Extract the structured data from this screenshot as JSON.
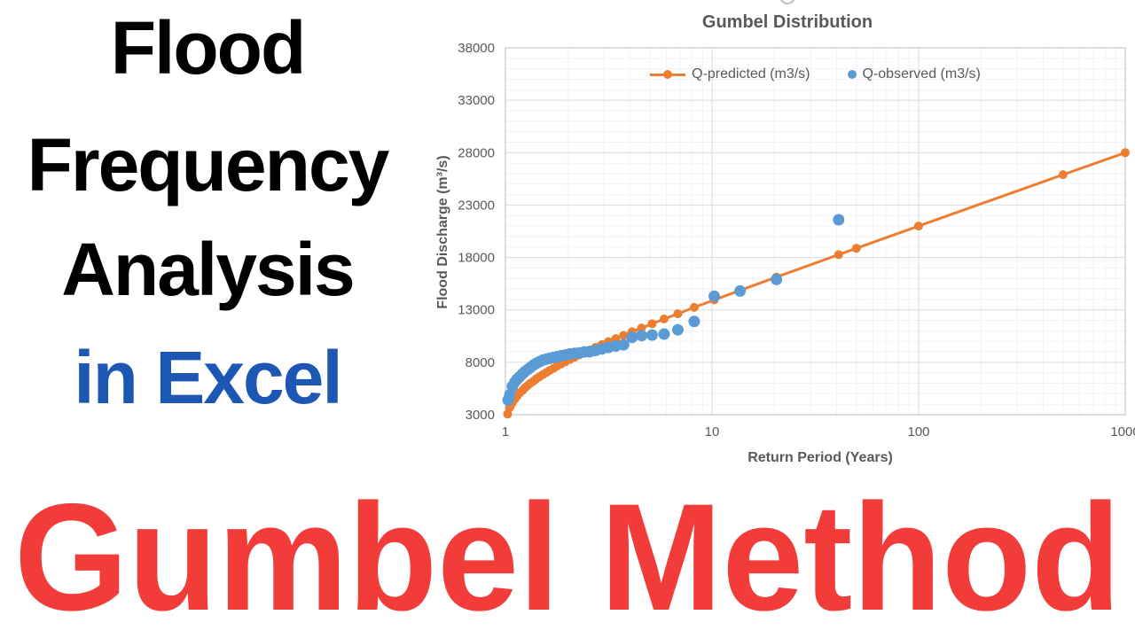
{
  "headline": {
    "lines": [
      {
        "text": "Flood",
        "color": "#000000"
      },
      {
        "text": "Frequency",
        "color": "#000000"
      },
      {
        "text": "Analysis",
        "color": "#000000"
      },
      {
        "text": "in Excel",
        "color": "#1c57b4"
      }
    ],
    "bottom": {
      "text": "Gumbel Method",
      "color": "#f23c3a"
    }
  },
  "chart_data": {
    "type": "scatter",
    "title": "Gumbel Distribution",
    "xlabel": "Return Period (Years)",
    "ylabel": "Flood Discharge (m³/s)",
    "x_axis": {
      "scale": "log",
      "min": 1,
      "max": 1000,
      "ticks": [
        1,
        10,
        100,
        1000
      ]
    },
    "y_axis": {
      "min": 3000,
      "max": 38000,
      "minor_step": 1000,
      "ticks": [
        3000,
        8000,
        13000,
        18000,
        23000,
        28000,
        33000,
        38000
      ]
    },
    "grid": {
      "major": true,
      "minor": true,
      "major_color": "#d6dbe2",
      "minor_color": "#eff2f6",
      "border_color": "#cdd4dd"
    },
    "legend_position": "top-center",
    "text_color": "#595959",
    "series": [
      {
        "name": "Q-predicted (m3/s)",
        "style": "line-marker",
        "color": "#ED7D31",
        "points": [
          [
            1.025,
            3060
          ],
          [
            1.05,
            3690
          ],
          [
            1.08,
            4130
          ],
          [
            1.11,
            4480
          ],
          [
            1.14,
            4790
          ],
          [
            1.17,
            5060
          ],
          [
            1.21,
            5320
          ],
          [
            1.24,
            5550
          ],
          [
            1.28,
            5780
          ],
          [
            1.32,
            6000
          ],
          [
            1.37,
            6210
          ],
          [
            1.41,
            6420
          ],
          [
            1.46,
            6620
          ],
          [
            1.52,
            6830
          ],
          [
            1.58,
            7030
          ],
          [
            1.64,
            7230
          ],
          [
            1.71,
            7430
          ],
          [
            1.78,
            7640
          ],
          [
            1.86,
            7840
          ],
          [
            1.95,
            8050
          ],
          [
            2.05,
            8260
          ],
          [
            2.16,
            8480
          ],
          [
            2.28,
            8710
          ],
          [
            2.41,
            8940
          ],
          [
            2.56,
            9180
          ],
          [
            2.73,
            9430
          ],
          [
            2.93,
            9690
          ],
          [
            3.15,
            9970
          ],
          [
            3.42,
            10260
          ],
          [
            3.73,
            10570
          ],
          [
            4.1,
            10910
          ],
          [
            4.56,
            11270
          ],
          [
            5.13,
            11680
          ],
          [
            5.86,
            12130
          ],
          [
            6.83,
            12630
          ],
          [
            8.2,
            13240
          ],
          [
            10.25,
            13950
          ],
          [
            13.67,
            14860
          ],
          [
            20.5,
            16130
          ],
          [
            41,
            18270
          ],
          [
            50,
            18880
          ],
          [
            100,
            21000
          ],
          [
            500,
            25900
          ],
          [
            1000,
            28000
          ]
        ]
      },
      {
        "name": "Q-observed (m3/s)",
        "style": "scatter",
        "color": "#5B9BD5",
        "points": [
          [
            41,
            21600
          ],
          [
            20.5,
            15900
          ],
          [
            13.67,
            14800
          ],
          [
            10.25,
            14300
          ],
          [
            8.2,
            11900
          ],
          [
            6.83,
            11100
          ],
          [
            5.86,
            10690
          ],
          [
            5.13,
            10600
          ],
          [
            4.56,
            10550
          ],
          [
            4.1,
            10370
          ],
          [
            3.73,
            9670
          ],
          [
            3.42,
            9550
          ],
          [
            3.15,
            9410
          ],
          [
            2.93,
            9270
          ],
          [
            2.73,
            9130
          ],
          [
            2.56,
            9000
          ],
          [
            2.41,
            8990
          ],
          [
            2.28,
            8900
          ],
          [
            2.16,
            8850
          ],
          [
            2.05,
            8800
          ],
          [
            1.95,
            8700
          ],
          [
            1.86,
            8620
          ],
          [
            1.78,
            8540
          ],
          [
            1.71,
            8460
          ],
          [
            1.64,
            8380
          ],
          [
            1.58,
            8300
          ],
          [
            1.52,
            8220
          ],
          [
            1.46,
            8050
          ],
          [
            1.41,
            7900
          ],
          [
            1.37,
            7750
          ],
          [
            1.32,
            7500
          ],
          [
            1.28,
            7300
          ],
          [
            1.24,
            7100
          ],
          [
            1.21,
            6900
          ],
          [
            1.17,
            6600
          ],
          [
            1.14,
            6400
          ],
          [
            1.11,
            6100
          ],
          [
            1.08,
            5700
          ],
          [
            1.05,
            4900
          ],
          [
            1.03,
            4400
          ]
        ]
      }
    ]
  }
}
